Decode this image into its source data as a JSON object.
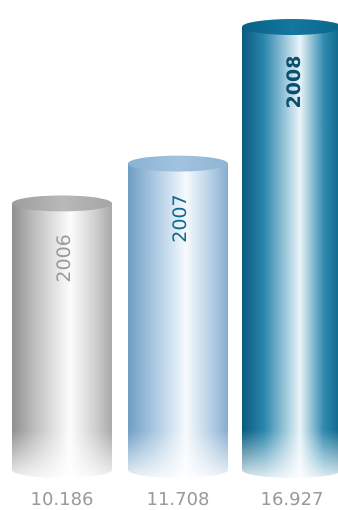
{
  "chart_data": {
    "type": "bar",
    "style": "3d-cylinder",
    "categories": [
      "2006",
      "2007",
      "2008"
    ],
    "values": [
      10186,
      11708,
      16927
    ],
    "value_labels": [
      "10.186",
      "11.708",
      "16.927"
    ],
    "title": "",
    "xlabel": "",
    "ylabel": "",
    "ylim": [
      0,
      17500
    ],
    "grid": false,
    "legend": "none",
    "category_label_placement": "inside-top-rotated",
    "value_label_placement": "below-bars"
  },
  "colors": {
    "bar_2006": "#9a9a9a",
    "bar_2007": "#8fb6d6",
    "bar_2008": "#0c6a8e",
    "label_2006": "#9a9a9a",
    "label_2007": "#0c6a8e",
    "label_2008": "#0a4f6e",
    "value_labels": "#9a9a9a",
    "background": "#ffffff"
  }
}
